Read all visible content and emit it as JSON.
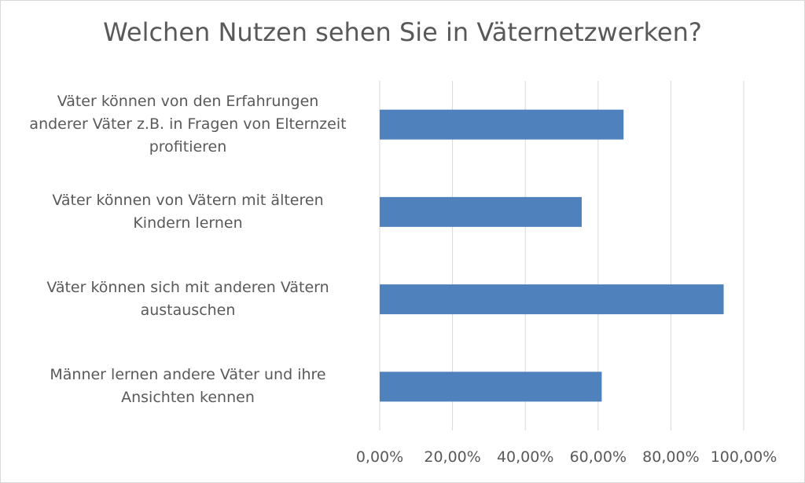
{
  "chart_data": {
    "type": "bar",
    "orientation": "horizontal",
    "title": "Welchen Nutzen sehen Sie in Väternetzwerken?",
    "categories": [
      "Väter können von den Erfahrungen\nanderer Väter z.B. in Fragen von Elternzeit\nprofitieren",
      "Väter können von Vätern mit älteren\nKindern lernen",
      "Väter können sich mit anderen Vätern\naustauschen",
      "Männer lernen andere Väter und ihre\nAnsichten kennen"
    ],
    "values": [
      0.67,
      0.555,
      0.945,
      0.61
    ],
    "xlim": [
      0,
      1.0
    ],
    "x_ticks": [
      0,
      0.2,
      0.4,
      0.6,
      0.8,
      1.0
    ],
    "x_tick_labels": [
      "0,00%",
      "20,00%",
      "40,00%",
      "60,00%",
      "80,00%",
      "100,00%"
    ],
    "xlabel": "",
    "ylabel": "",
    "bar_color": "#4f81bd",
    "grid": true,
    "legend": "none"
  }
}
